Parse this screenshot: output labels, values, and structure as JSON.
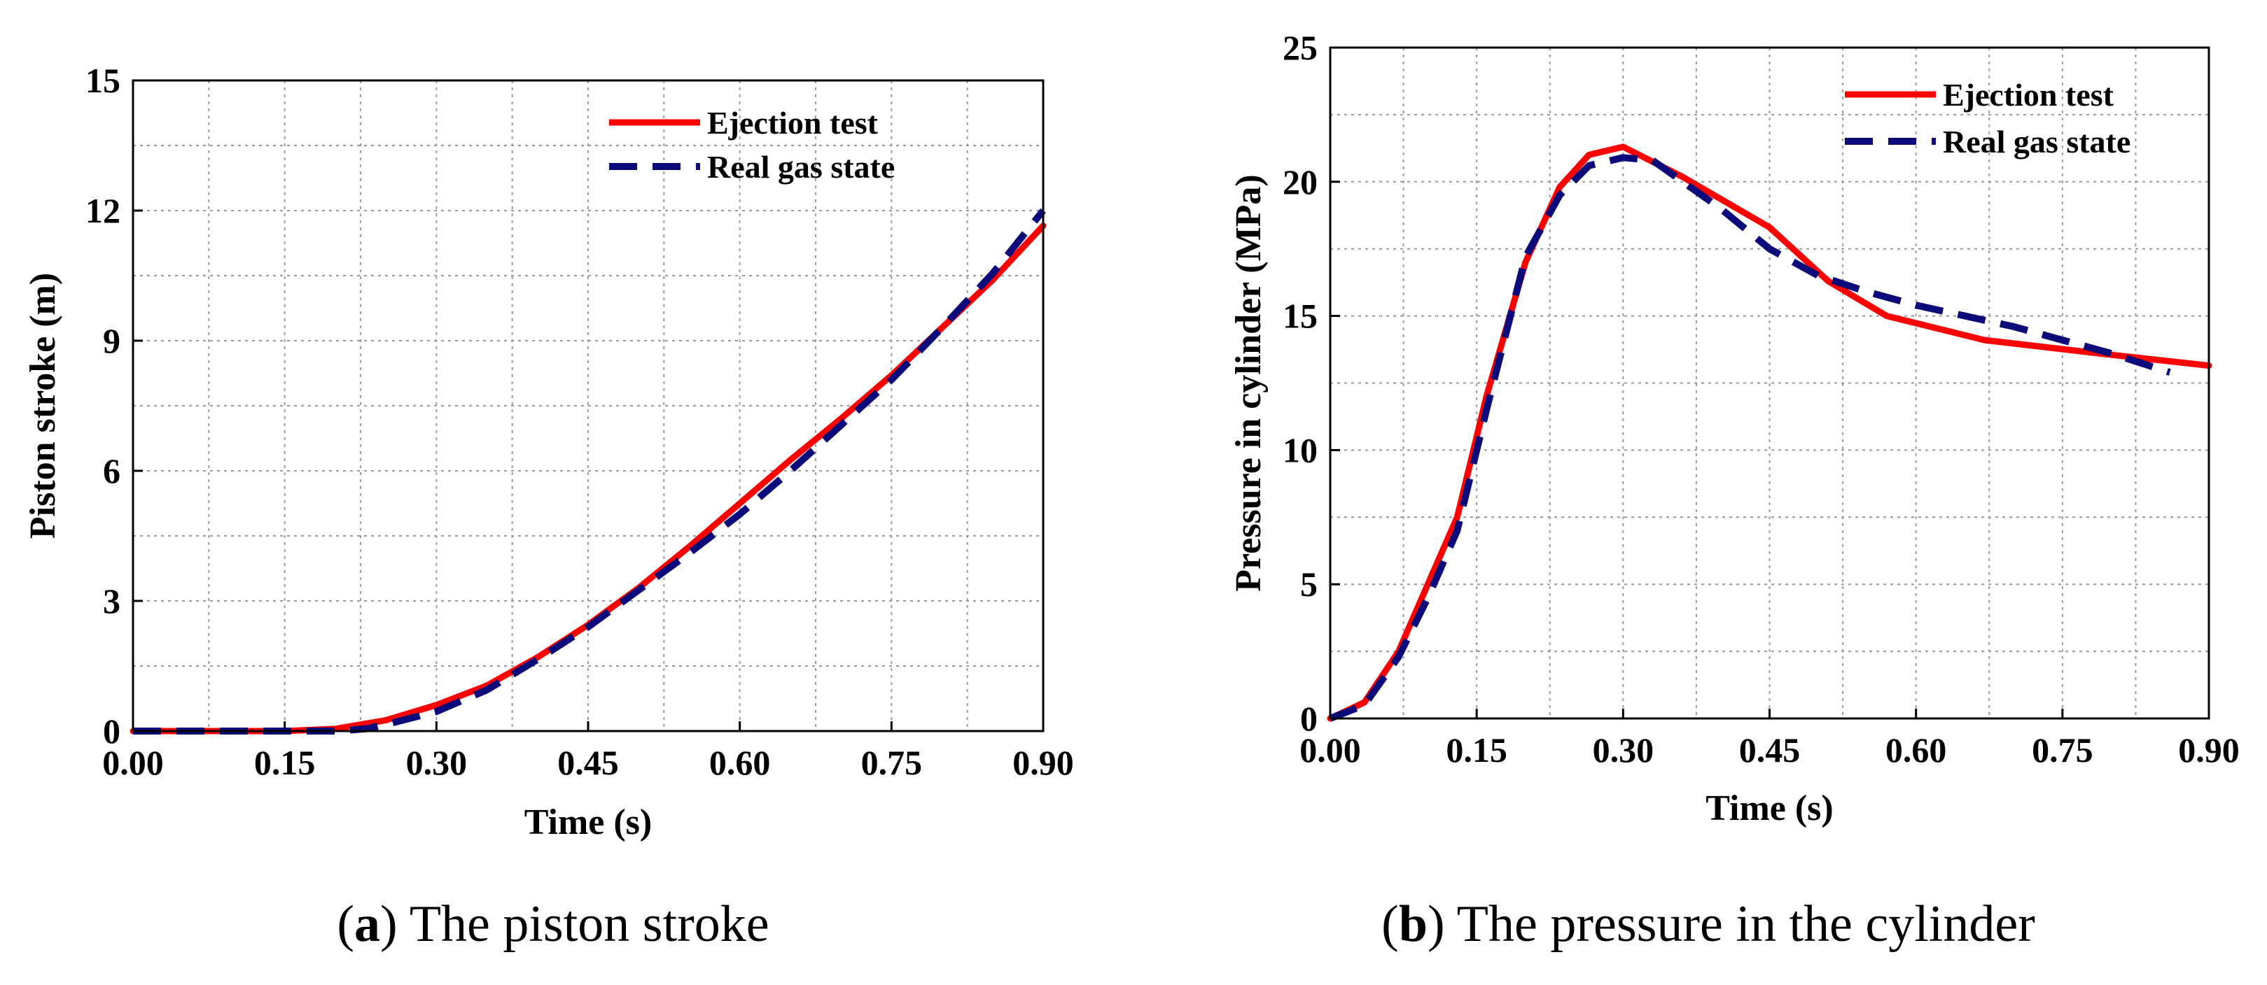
{
  "chart_data": [
    {
      "type": "line",
      "title": "",
      "xlabel": "Time (s)",
      "ylabel": "Piston stroke (m)",
      "xlim": [
        0,
        0.9
      ],
      "ylim": [
        0,
        15
      ],
      "xticks": [
        "0.00",
        "0.15",
        "0.30",
        "0.45",
        "0.60",
        "0.75",
        "0.90"
      ],
      "yticks": [
        "0",
        "3",
        "6",
        "9",
        "12",
        "15"
      ],
      "grid": true,
      "legend_position": "top-right",
      "caption": {
        "letter": "a",
        "text": "The piston stroke"
      },
      "series": [
        {
          "name": "Ejection test",
          "color": "#ff0000",
          "style": "solid",
          "x": [
            0,
            0.15,
            0.2,
            0.25,
            0.3,
            0.35,
            0.4,
            0.45,
            0.5,
            0.55,
            0.6,
            0.65,
            0.7,
            0.75,
            0.8,
            0.85,
            0.9
          ],
          "y": [
            0,
            0,
            0.05,
            0.25,
            0.6,
            1.05,
            1.7,
            2.45,
            3.3,
            4.25,
            5.25,
            6.25,
            7.2,
            8.2,
            9.3,
            10.4,
            11.65
          ]
        },
        {
          "name": "Real gas state",
          "color": "#0a0a7a",
          "style": "dashed",
          "x": [
            0,
            0.2,
            0.23,
            0.25,
            0.3,
            0.35,
            0.4,
            0.45,
            0.5,
            0.55,
            0.6,
            0.65,
            0.7,
            0.75,
            0.8,
            0.85,
            0.9
          ],
          "y": [
            0,
            0,
            0.05,
            0.15,
            0.45,
            0.95,
            1.65,
            2.4,
            3.25,
            4.1,
            5.0,
            6.0,
            7.05,
            8.1,
            9.3,
            10.55,
            12.0
          ]
        }
      ]
    },
    {
      "type": "line",
      "title": "",
      "xlabel": "Time (s)",
      "ylabel": "Pressure in cylinder (MPa)",
      "xlim": [
        0,
        0.9
      ],
      "ylim": [
        0,
        25
      ],
      "xticks": [
        "0.00",
        "0.15",
        "0.30",
        "0.45",
        "0.60",
        "0.75",
        "0.90"
      ],
      "yticks": [
        "0",
        "5",
        "10",
        "15",
        "20",
        "25"
      ],
      "grid": true,
      "legend_position": "top-right",
      "caption": {
        "letter": "b",
        "text": "The pressure in the cylinder"
      },
      "series": [
        {
          "name": "Ejection test",
          "color": "#ff0000",
          "style": "solid",
          "x": [
            0,
            0.035,
            0.07,
            0.1,
            0.13,
            0.16,
            0.2,
            0.235,
            0.265,
            0.3,
            0.36,
            0.45,
            0.51,
            0.57,
            0.67,
            0.8,
            0.9
          ],
          "y": [
            0,
            0.6,
            2.5,
            5.0,
            7.5,
            12.0,
            17.0,
            19.8,
            21.0,
            21.3,
            20.2,
            18.3,
            16.3,
            15.0,
            14.1,
            13.55,
            13.15
          ]
        },
        {
          "name": "Real gas state",
          "color": "#0a0a7a",
          "style": "dashed",
          "x": [
            0,
            0.035,
            0.07,
            0.1,
            0.13,
            0.16,
            0.2,
            0.235,
            0.265,
            0.3,
            0.33,
            0.4,
            0.45,
            0.5,
            0.55,
            0.6,
            0.7,
            0.8,
            0.86
          ],
          "y": [
            0,
            0.5,
            2.3,
            4.5,
            7.0,
            11.5,
            17.2,
            19.5,
            20.6,
            20.9,
            20.8,
            19.0,
            17.5,
            16.5,
            15.9,
            15.4,
            14.6,
            13.6,
            12.9
          ]
        }
      ]
    }
  ]
}
